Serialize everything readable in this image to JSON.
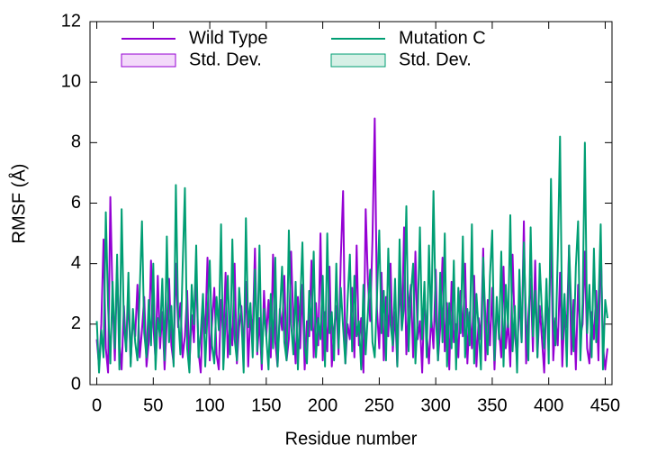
{
  "chart_data": {
    "type": "line",
    "xlabel": "Residue number",
    "ylabel": "RMSF (Å)",
    "xlim": [
      -6,
      456
    ],
    "ylim": [
      0,
      12
    ],
    "xticks": [
      0,
      50,
      100,
      150,
      200,
      250,
      300,
      350,
      400,
      450
    ],
    "yticks": [
      0,
      2,
      4,
      6,
      8,
      10,
      12
    ],
    "x": [
      0,
      2,
      4,
      6,
      8,
      10,
      12,
      14,
      16,
      18,
      20,
      22,
      24,
      26,
      28,
      30,
      32,
      34,
      36,
      38,
      40,
      42,
      44,
      46,
      48,
      50,
      52,
      54,
      56,
      58,
      60,
      62,
      64,
      66,
      68,
      70,
      72,
      74,
      76,
      78,
      80,
      82,
      84,
      86,
      88,
      90,
      92,
      94,
      96,
      98,
      100,
      102,
      104,
      106,
      108,
      110,
      112,
      114,
      116,
      118,
      120,
      122,
      124,
      126,
      128,
      130,
      132,
      134,
      136,
      138,
      140,
      142,
      144,
      146,
      148,
      150,
      152,
      154,
      156,
      158,
      160,
      162,
      164,
      166,
      168,
      170,
      172,
      174,
      176,
      178,
      180,
      182,
      184,
      186,
      188,
      190,
      192,
      194,
      196,
      198,
      200,
      202,
      204,
      206,
      208,
      210,
      212,
      214,
      216,
      218,
      220,
      222,
      224,
      226,
      228,
      230,
      232,
      234,
      236,
      238,
      240,
      242,
      244,
      246,
      248,
      250,
      252,
      254,
      256,
      258,
      260,
      262,
      264,
      266,
      268,
      270,
      272,
      274,
      276,
      278,
      280,
      282,
      284,
      286,
      288,
      290,
      292,
      294,
      296,
      298,
      300,
      302,
      304,
      306,
      308,
      310,
      312,
      314,
      316,
      318,
      320,
      322,
      324,
      326,
      328,
      330,
      332,
      334,
      336,
      338,
      340,
      342,
      344,
      346,
      348,
      350,
      352,
      354,
      356,
      358,
      360,
      362,
      364,
      366,
      368,
      370,
      372,
      374,
      376,
      378,
      380,
      382,
      384,
      386,
      388,
      390,
      392,
      394,
      396,
      398,
      400,
      402,
      404,
      406,
      408,
      410,
      412,
      414,
      416,
      418,
      420,
      422,
      424,
      426,
      428,
      430,
      432,
      434,
      436,
      438,
      440,
      442,
      444,
      446,
      448,
      450,
      452
    ],
    "series": [
      {
        "name": "Wild Type",
        "color": "#9400d3",
        "band": {
          "name": "Std. Dev.",
          "fill": "#f3d9fa"
        },
        "values": [
          1.5,
          0.6,
          2.0,
          4.8,
          1.2,
          0.4,
          6.2,
          2.8,
          0.8,
          3.9,
          1.4,
          0.5,
          2.6,
          1.1,
          3.0,
          0.7,
          2.2,
          1.6,
          3.3,
          0.9,
          1.8,
          2.9,
          0.6,
          1.4,
          4.1,
          2.0,
          0.8,
          3.6,
          1.2,
          2.4,
          0.5,
          2.1,
          3.5,
          1.3,
          0.7,
          4.0,
          1.9,
          2.7,
          0.9,
          1.6,
          3.1,
          0.6,
          2.3,
          1.4,
          3.8,
          1.1,
          0.4,
          2.5,
          1.7,
          4.2,
          0.8,
          2.0,
          3.2,
          1.0,
          0.5,
          2.8,
          1.5,
          3.7,
          0.9,
          2.2,
          1.3,
          4.0,
          0.7,
          1.9,
          2.6,
          1.1,
          3.4,
          0.6,
          2.4,
          1.7,
          4.5,
          1.0,
          2.2,
          0.5,
          3.1,
          1.6,
          2.8,
          0.9,
          4.3,
          1.4,
          0.6,
          2.5,
          1.8,
          3.6,
          0.8,
          1.5,
          4.4,
          2.0,
          0.7,
          2.9,
          1.2,
          3.3,
          0.5,
          2.1,
          1.6,
          4.1,
          0.9,
          2.7,
          1.3,
          5.0,
          0.8,
          2.4,
          1.1,
          3.9,
          0.6,
          1.8,
          2.6,
          1.0,
          4.2,
          6.4,
          0.7,
          2.0,
          1.5,
          3.2,
          0.9,
          4.6,
          1.3,
          2.2,
          0.4,
          5.8,
          3.4,
          2.1,
          4.8,
          8.8,
          2.5,
          1.2,
          3.7,
          0.8,
          2.9,
          1.6,
          4.0,
          1.1,
          2.4,
          0.6,
          3.5,
          1.8,
          5.2,
          1.0,
          2.6,
          3.3,
          0.9,
          4.4,
          1.5,
          2.1,
          0.4,
          3.0,
          1.7,
          0.7,
          2.3,
          1.2,
          3.8,
          0.8,
          1.9,
          4.2,
          1.1,
          2.7,
          0.5,
          3.4,
          1.4,
          2.0,
          0.9,
          3.1,
          1.6,
          4.0,
          0.7,
          2.4,
          1.2,
          3.6,
          0.6,
          2.2,
          1.5,
          4.5,
          0.8,
          2.8,
          1.3,
          3.2,
          0.5,
          2.5,
          1.8,
          0.9,
          3.9,
          1.2,
          2.1,
          0.6,
          4.3,
          1.7,
          0.8,
          2.9,
          1.4,
          5.4,
          0.7,
          2.3,
          3.5,
          1.1,
          4.1,
          0.9,
          2.6,
          1.5,
          0.4,
          3.0,
          1.8,
          5.0,
          0.8,
          2.2,
          1.3,
          3.7,
          0.6,
          2.5,
          1.9,
          4.6,
          1.0,
          2.8,
          0.5,
          3.3,
          1.6,
          2.0,
          4.4,
          1.2,
          0.7,
          2.4,
          1.5,
          3.1,
          0.8,
          4.8,
          1.3,
          0.5,
          1.2
        ]
      },
      {
        "name": "Mutation C",
        "color": "#009e73",
        "band": {
          "name": "Std. Dev.",
          "fill": "#d6f0e6"
        },
        "values": [
          2.1,
          0.4,
          1.8,
          0.9,
          5.7,
          2.6,
          0.7,
          3.4,
          1.2,
          4.3,
          0.5,
          5.8,
          2.0,
          1.1,
          3.7,
          0.6,
          2.5,
          1.4,
          0.8,
          3.1,
          5.4,
          1.7,
          0.9,
          2.8,
          1.3,
          4.0,
          0.5,
          2.2,
          1.6,
          3.5,
          0.8,
          4.9,
          1.4,
          2.6,
          0.6,
          6.6,
          2.3,
          1.0,
          3.9,
          6.5,
          1.2,
          0.4,
          3.3,
          2.0,
          4.6,
          0.9,
          1.7,
          3.0,
          0.6,
          2.4,
          4.1,
          1.3,
          0.7,
          2.9,
          1.8,
          5.3,
          0.5,
          2.1,
          3.6,
          1.0,
          4.8,
          1.5,
          0.8,
          3.2,
          2.2,
          0.4,
          5.5,
          1.9,
          2.7,
          0.9,
          3.8,
          1.1,
          4.6,
          0.7,
          2.5,
          1.6,
          0.5,
          3.0,
          1.2,
          4.2,
          0.6,
          2.3,
          3.9,
          1.4,
          0.8,
          5.1,
          2.0,
          1.0,
          3.4,
          0.5,
          2.6,
          4.7,
          1.3,
          0.7,
          3.1,
          1.8,
          4.4,
          0.9,
          2.2,
          1.5,
          3.6,
          0.6,
          5.0,
          1.7,
          2.4,
          0.8,
          4.0,
          1.2,
          3.2,
          1.9,
          0.7,
          2.8,
          4.3,
          1.1,
          3.6,
          1.6,
          2.1,
          0.5,
          3.3,
          1.0,
          2.4,
          3.8,
          1.4,
          0.9,
          2.9,
          5.1,
          1.7,
          3.1,
          0.8,
          4.5,
          2.0,
          1.3,
          3.5,
          0.6,
          4.8,
          1.8,
          2.6,
          5.9,
          1.1,
          3.0,
          4.0,
          0.7,
          2.2,
          5.2,
          1.5,
          3.4,
          0.9,
          4.6,
          1.9,
          6.4,
          2.3,
          0.8,
          3.7,
          1.4,
          5.0,
          0.6,
          2.7,
          1.2,
          4.1,
          0.5,
          3.2,
          1.7,
          4.9,
          0.9,
          2.5,
          1.3,
          5.3,
          0.7,
          3.0,
          1.8,
          0.5,
          4.2,
          2.1,
          1.0,
          3.6,
          5.1,
          0.8,
          2.9,
          1.5,
          4.4,
          0.6,
          3.3,
          1.9,
          5.6,
          1.1,
          2.6,
          0.4,
          3.8,
          1.4,
          4.7,
          2.0,
          0.8,
          5.2,
          1.6,
          3.1,
          0.9,
          4.0,
          2.4,
          1.2,
          3.5,
          0.7,
          6.8,
          2.2,
          1.3,
          4.3,
          8.2,
          1.5,
          3.0,
          0.6,
          4.6,
          2.5,
          1.1,
          3.9,
          5.4,
          0.8,
          2.7,
          8.0,
          1.7,
          3.3,
          0.9,
          4.5,
          1.4,
          2.6,
          5.3,
          0.5,
          2.8,
          2.2
        ]
      }
    ]
  }
}
